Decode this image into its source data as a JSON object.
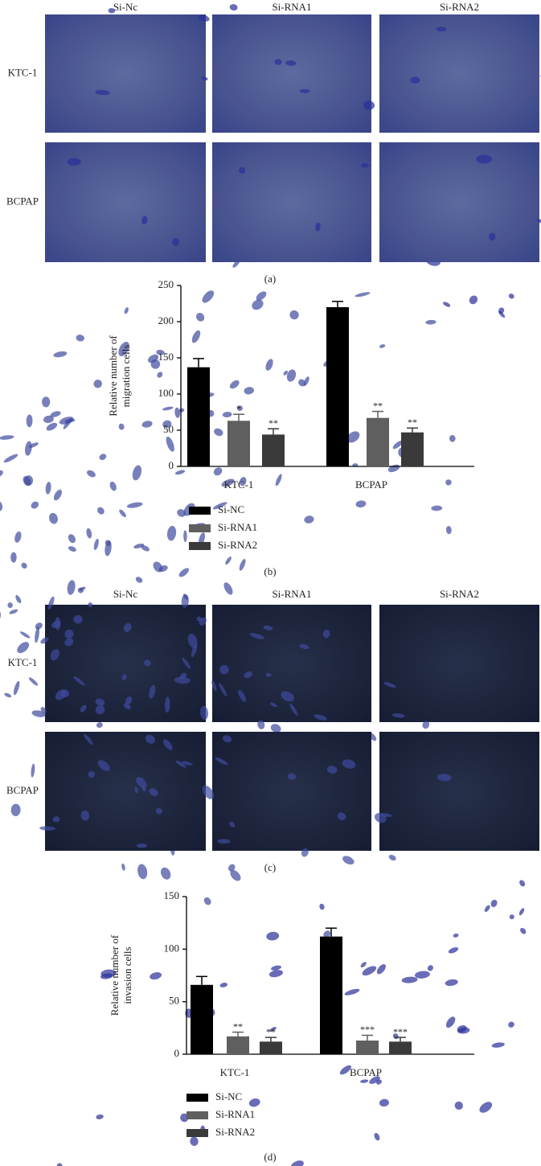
{
  "panels": [
    {
      "label": "(a)",
      "columns": [
        "Si-Nc",
        "Si-RNA1",
        "Si-RNA2"
      ],
      "rows": [
        "KTC-1",
        "BCPAP"
      ]
    },
    {
      "label": "(c)",
      "columns": [
        "Si-Nc",
        "Si-RNA1",
        "Si-RNA2"
      ],
      "rows": [
        "KTC-1",
        "BCPAP"
      ]
    }
  ],
  "chart_data": [
    {
      "type": "bar",
      "label": "(b)",
      "ylabel": [
        "Relative number of",
        "migration cells"
      ],
      "categories": [
        "KTC-1",
        "BCPAP"
      ],
      "series": [
        {
          "name": "Si-NC",
          "color": "#000000",
          "values": [
            137,
            220
          ],
          "errors": [
            12,
            8
          ]
        },
        {
          "name": "Si-RNA1",
          "color": "#5f5f5f",
          "values": [
            63,
            67
          ],
          "errors": [
            9,
            9
          ],
          "stars": [
            "*",
            "**"
          ]
        },
        {
          "name": "Si-RNA2",
          "color": "#3a3a3a",
          "values": [
            44,
            47
          ],
          "errors": [
            8,
            6
          ],
          "stars": [
            "**",
            "**"
          ]
        }
      ],
      "ylim": [
        0,
        250
      ],
      "yticks": [
        0,
        50,
        100,
        150,
        200,
        250
      ]
    },
    {
      "type": "bar",
      "label": "(d)",
      "ylabel": [
        "Relative number of",
        "invasion cells"
      ],
      "categories": [
        "KTC-1",
        "BCPAP"
      ],
      "series": [
        {
          "name": "Si-NC",
          "color": "#000000",
          "values": [
            66,
            112
          ],
          "errors": [
            8,
            8
          ]
        },
        {
          "name": "Si-RNA1",
          "color": "#5f5f5f",
          "values": [
            17,
            13
          ],
          "errors": [
            4,
            5
          ],
          "stars": [
            "**",
            "***"
          ]
        },
        {
          "name": "Si-RNA2",
          "color": "#3a3a3a",
          "values": [
            12,
            12
          ],
          "errors": [
            4,
            4
          ],
          "stars": [
            "**",
            "***"
          ]
        }
      ],
      "ylim": [
        0,
        150
      ],
      "yticks": [
        0,
        50,
        100,
        150
      ]
    }
  ]
}
